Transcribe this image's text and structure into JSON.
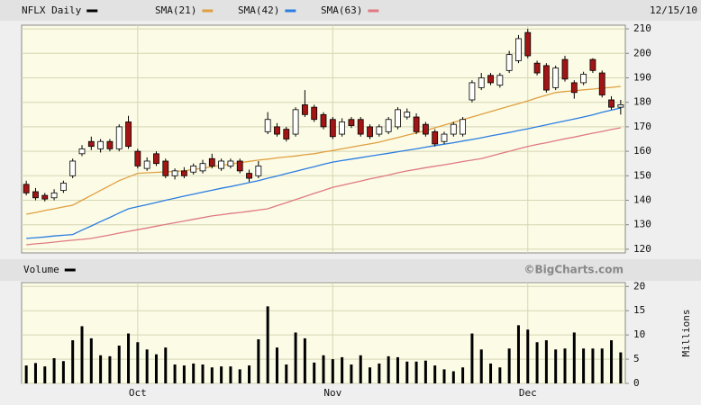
{
  "chart_data": [
    {
      "type": "candlestick",
      "title": "NFLX Daily",
      "date_label": "12/15/10",
      "categories": [
        null,
        null,
        null,
        null,
        null,
        null,
        null,
        null,
        null,
        null,
        null,
        null,
        "Oct",
        null,
        null,
        null,
        null,
        null,
        null,
        null,
        null,
        null,
        null,
        null,
        null,
        null,
        null,
        null,
        null,
        null,
        null,
        null,
        null,
        "Nov",
        null,
        null,
        null,
        null,
        null,
        null,
        null,
        null,
        null,
        null,
        null,
        null,
        null,
        null,
        null,
        null,
        null,
        null,
        null,
        null,
        "Dec",
        null,
        null,
        null,
        null,
        null,
        null,
        null,
        null,
        null,
        null
      ],
      "open": [
        146.5,
        143.5,
        142,
        141,
        144,
        150,
        159,
        164,
        161,
        164,
        161,
        172,
        160,
        153,
        159,
        156,
        150,
        152,
        151.5,
        152,
        157,
        153,
        154,
        156,
        151,
        150,
        168,
        170,
        169,
        167,
        179,
        178,
        175,
        173,
        167,
        173,
        173,
        170,
        167,
        168,
        170,
        174,
        174,
        171,
        168,
        164,
        167,
        167,
        181,
        186,
        191,
        187,
        193,
        197,
        208.5,
        196,
        195,
        186,
        197.5,
        188,
        188,
        197.5,
        192,
        181,
        178
      ],
      "high": [
        148,
        145,
        143,
        144.5,
        148,
        157,
        162.5,
        166,
        165,
        165,
        171,
        174.5,
        161,
        157.5,
        160,
        157,
        153,
        153.5,
        155,
        156.5,
        159,
        157,
        157,
        157,
        152.5,
        156,
        176,
        171.5,
        170,
        178,
        185,
        179,
        176,
        174,
        173.5,
        174,
        174,
        171,
        171,
        174,
        178,
        177.5,
        175.5,
        172,
        169,
        168,
        172,
        174,
        189,
        192,
        192,
        192,
        201,
        207.5,
        210,
        197,
        196,
        195,
        199,
        189,
        192.5,
        198,
        193,
        182.5,
        181
      ],
      "low": [
        142,
        140,
        139.5,
        140,
        143,
        149,
        158,
        160.5,
        159.5,
        160,
        160,
        161,
        153,
        152,
        154,
        149,
        148.5,
        149,
        150.5,
        151,
        153,
        152,
        153,
        151,
        147.5,
        149,
        167,
        166,
        164,
        166,
        174,
        172,
        169,
        165,
        166,
        169.5,
        166,
        165,
        166,
        167,
        169,
        173,
        167,
        166,
        162,
        163,
        166,
        166,
        180,
        185,
        187,
        186,
        192,
        196,
        198,
        191,
        184,
        185,
        188.5,
        181.5,
        187,
        192,
        182,
        177,
        175
      ],
      "close": [
        143,
        141,
        140.5,
        143,
        147,
        156,
        161,
        162,
        164,
        161,
        170,
        162,
        154,
        156,
        155,
        150,
        152,
        150,
        154,
        155,
        154,
        156,
        156,
        152,
        149,
        154,
        173,
        167,
        165,
        177,
        175,
        173,
        170,
        166,
        172,
        170.5,
        167,
        166,
        170,
        173,
        177,
        176,
        168,
        167,
        163,
        167,
        171,
        173,
        188,
        190,
        188,
        191,
        199.5,
        206,
        199,
        192,
        185,
        194,
        189.5,
        184,
        191.5,
        193,
        183,
        178,
        179
      ],
      "up_color": "#ffffff",
      "down_color": "#a31515",
      "series": [
        {
          "name": "SMA(21)",
          "color": "#e0a040",
          "values": [
            134.3,
            135,
            135.8,
            136.5,
            137.3,
            138,
            140,
            142,
            144,
            146,
            148,
            149.5,
            151,
            151.2,
            151.4,
            151.6,
            151.8,
            152,
            152.6,
            153.1,
            153.7,
            154.2,
            154.8,
            155.3,
            155.9,
            156.4,
            156.8,
            157.3,
            157.7,
            158.1,
            158.6,
            159,
            159.7,
            160.3,
            161,
            161.7,
            162.4,
            163,
            163.7,
            164.7,
            165.6,
            166.6,
            167.5,
            168.5,
            169.6,
            170.7,
            171.8,
            172.9,
            174,
            175.1,
            176.2,
            177.3,
            178.4,
            179.5,
            180.6,
            181.8,
            182.9,
            184,
            184.4,
            184.7,
            185.1,
            185.4,
            185.8,
            186.1,
            186.5
          ]
        },
        {
          "name": "SMA(42)",
          "color": "#2a7de1",
          "values": [
            124.4,
            124.7,
            125,
            125.4,
            125.7,
            126,
            127.8,
            129.5,
            131.3,
            133,
            134.8,
            136.5,
            137.4,
            138.2,
            139.1,
            140,
            140.8,
            141.7,
            142.5,
            143.3,
            144.1,
            144.9,
            145.6,
            146.4,
            147.2,
            148,
            149,
            149.9,
            150.9,
            151.8,
            152.8,
            153.7,
            154.7,
            155.6,
            156.2,
            156.8,
            157.4,
            158,
            158.6,
            159.2,
            159.8,
            160.4,
            161,
            161.7,
            162.3,
            162.9,
            163.5,
            164.2,
            164.8,
            165.5,
            166.3,
            167,
            167.7,
            168.5,
            169.2,
            170,
            170.8,
            171.6,
            172.4,
            173.2,
            174,
            174.9,
            175.9,
            176.8,
            177.7
          ]
        },
        {
          "name": "SMA(63)",
          "color": "#e07a80",
          "values": [
            121.8,
            122.2,
            122.5,
            122.9,
            123.3,
            123.7,
            124,
            124.4,
            125.1,
            125.8,
            126.6,
            127.3,
            128,
            128.7,
            129.4,
            130.1,
            130.8,
            131.5,
            132.2,
            132.9,
            133.6,
            134.1,
            134.6,
            135,
            135.5,
            136,
            136.5,
            137.8,
            139,
            140.3,
            141.5,
            142.8,
            144,
            145.3,
            146.1,
            147,
            147.8,
            148.7,
            149.5,
            150.3,
            151.2,
            152,
            152.6,
            153.3,
            153.9,
            154.5,
            155.1,
            155.8,
            156.4,
            157,
            158,
            159,
            160,
            161,
            162,
            162.8,
            163.5,
            164.3,
            165.1,
            165.8,
            166.6,
            167.4,
            168.1,
            168.9,
            169.6
          ]
        }
      ],
      "ylim": [
        118.5,
        211.5
      ],
      "yticks": [
        120,
        130,
        140,
        150,
        160,
        170,
        180,
        190,
        200,
        210
      ],
      "grid": true
    },
    {
      "type": "bar",
      "title": "Volume",
      "credit": "©BigCharts.com",
      "y_label": "Millions",
      "color": "#000000",
      "values": [
        3.7,
        4.2,
        3.5,
        5.2,
        4.6,
        8.9,
        11.8,
        9.3,
        5.8,
        5.6,
        7.8,
        10.3,
        8.5,
        7,
        6,
        7.4,
        3.9,
        3.7,
        4.1,
        3.9,
        3.3,
        3.5,
        3.5,
        2.9,
        3.7,
        9.1,
        15.9,
        7.4,
        3.9,
        10.5,
        9.3,
        4.3,
        5.8,
        5,
        5.4,
        3.9,
        5.8,
        3.3,
        4.1,
        5.6,
        5.4,
        4.5,
        4.5,
        4.7,
        3.7,
        2.9,
        2.5,
        3.3,
        10.3,
        7,
        4.1,
        3.3,
        7.2,
        12,
        11.1,
        8.5,
        8.9,
        7,
        7.2,
        10.5,
        7.2,
        7.2,
        7.2,
        8.9,
        6.4
      ],
      "ylim": [
        0,
        20.8
      ],
      "yticks": [
        0,
        5,
        10,
        15,
        20
      ],
      "grid": true
    }
  ]
}
